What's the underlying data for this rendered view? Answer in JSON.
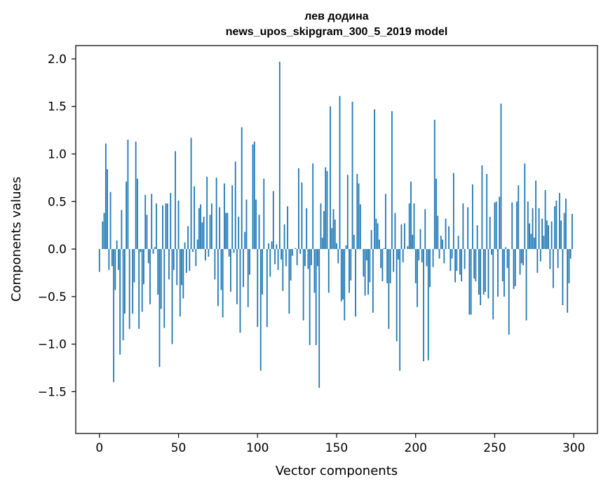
{
  "chart_data": {
    "type": "bar",
    "title": "лев додина",
    "subtitle": "news_upos_skipgram_300_5_2019 model",
    "xlabel": "Vector components",
    "ylabel": "Components values",
    "xlim": [
      -15,
      315
    ],
    "ylim": [
      -1.94,
      2.14
    ],
    "xticks": [
      0,
      50,
      100,
      150,
      200,
      250,
      300
    ],
    "yticks": [
      -1.5,
      -1.0,
      -0.5,
      0.0,
      0.5,
      1.0,
      1.5,
      2.0
    ],
    "ytick_labels": [
      "−1.5",
      "−1.0",
      "−0.5",
      "0.0",
      "0.5",
      "1.0",
      "1.5",
      "2.0"
    ],
    "bar_color": "#1f77b4",
    "grid": false,
    "x": [
      0,
      1,
      2,
      3,
      4,
      5,
      6,
      7,
      8,
      9,
      10,
      11,
      12,
      13,
      14,
      15,
      16,
      17,
      18,
      19,
      20,
      21,
      22,
      23,
      24,
      25,
      26,
      27,
      28,
      29,
      30,
      31,
      32,
      33,
      34,
      35,
      36,
      37,
      38,
      39,
      40,
      41,
      42,
      43,
      44,
      45,
      46,
      47,
      48,
      49,
      50,
      51,
      52,
      53,
      54,
      55,
      56,
      57,
      58,
      59,
      60,
      61,
      62,
      63,
      64,
      65,
      66,
      67,
      68,
      69,
      70,
      71,
      72,
      73,
      74,
      75,
      76,
      77,
      78,
      79,
      80,
      81,
      82,
      83,
      84,
      85,
      86,
      87,
      88,
      89,
      90,
      91,
      92,
      93,
      94,
      95,
      96,
      97,
      98,
      99,
      100,
      101,
      102,
      103,
      104,
      105,
      106,
      107,
      108,
      109,
      110,
      111,
      112,
      113,
      114,
      115,
      116,
      117,
      118,
      119,
      120,
      121,
      122,
      123,
      124,
      125,
      126,
      127,
      128,
      129,
      130,
      131,
      132,
      133,
      134,
      135,
      136,
      137,
      138,
      139,
      140,
      141,
      142,
      143,
      144,
      145,
      146,
      147,
      148,
      149,
      150,
      151,
      152,
      153,
      154,
      155,
      156,
      157,
      158,
      159,
      160,
      161,
      162,
      163,
      164,
      165,
      166,
      167,
      168,
      169,
      170,
      171,
      172,
      173,
      174,
      175,
      176,
      177,
      178,
      179,
      180,
      181,
      182,
      183,
      184,
      185,
      186,
      187,
      188,
      189,
      190,
      191,
      192,
      193,
      194,
      195,
      196,
      197,
      198,
      199,
      200,
      201,
      202,
      203,
      204,
      205,
      206,
      207,
      208,
      209,
      210,
      211,
      212,
      213,
      214,
      215,
      216,
      217,
      218,
      219,
      220,
      221,
      222,
      223,
      224,
      225,
      226,
      227,
      228,
      229,
      230,
      231,
      232,
      233,
      234,
      235,
      236,
      237,
      238,
      239,
      240,
      241,
      242,
      243,
      244,
      245,
      246,
      247,
      248,
      249,
      250,
      251,
      252,
      253,
      254,
      255,
      256,
      257,
      258,
      259,
      260,
      261,
      262,
      263,
      264,
      265,
      266,
      267,
      268,
      269,
      270,
      271,
      272,
      273,
      274,
      275,
      276,
      277,
      278,
      279,
      280,
      281,
      282,
      283,
      284,
      285,
      286,
      287,
      288,
      289,
      290,
      291,
      292,
      293,
      294,
      295,
      296,
      297,
      298,
      299
    ],
    "values": [
      -0.24,
      0.0,
      0.29,
      0.38,
      1.11,
      0.84,
      -0.22,
      0.6,
      -0.18,
      -1.4,
      -0.43,
      0.09,
      -0.22,
      -1.11,
      0.41,
      -0.96,
      -0.68,
      0.71,
      1.15,
      -0.84,
      0.0,
      -0.68,
      -0.35,
      1.13,
      0.74,
      -0.84,
      -0.03,
      -0.66,
      -0.37,
      0.57,
      0.36,
      -0.15,
      -0.58,
      0.58,
      -0.05,
      0.02,
      0.48,
      -0.48,
      -1.24,
      -0.63,
      0.46,
      -0.83,
      0.48,
      0.48,
      -0.32,
      0.59,
      -1.0,
      -0.22,
      1.03,
      -0.38,
      0.51,
      -0.71,
      -0.38,
      -0.52,
      0.07,
      -0.25,
      0.24,
      -0.23,
      1.17,
      -0.03,
      0.66,
      -0.18,
      0.1,
      0.43,
      0.47,
      0.28,
      0.34,
      -0.12,
      0.76,
      -0.08,
      0.36,
      0.48,
      0.0,
      -0.32,
      0.75,
      -0.6,
      0.44,
      -0.43,
      -0.72,
      0.69,
      0.38,
      0.38,
      -0.08,
      -0.45,
      0.67,
      -0.04,
      0.92,
      -0.58,
      0.34,
      -0.88,
      1.28,
      -0.4,
      0.18,
      0.52,
      -0.61,
      -0.27,
      0.0,
      1.1,
      1.13,
      0.52,
      -0.82,
      0.36,
      -1.28,
      -0.48,
      0.74,
      0.0,
      -0.82,
      0.06,
      -0.29,
      0.08,
      0.61,
      -0.16,
      0.05,
      -0.22,
      1.97,
      -0.11,
      -0.44,
      0.26,
      -0.18,
      0.45,
      -0.68,
      -0.33,
      -0.07,
      0.0,
      0.01,
      -0.17,
      0.85,
      -0.05,
      0.7,
      -0.75,
      -0.18,
      0.43,
      -0.21,
      -1.01,
      -0.17,
      0.9,
      -0.46,
      -1.01,
      -0.18,
      -1.46,
      0.48,
      0.12,
      0.4,
      0.86,
      0.82,
      -0.46,
      1.5,
      0.22,
      0.42,
      0.31,
      0.06,
      -0.15,
      1.61,
      -0.55,
      -0.53,
      -0.75,
      0.04,
      0.78,
      -0.46,
      -0.33,
      1.55,
      0.15,
      -0.71,
      0.79,
      0.69,
      0.47,
      0.0,
      -0.29,
      -0.49,
      -0.12,
      -0.48,
      -0.35,
      0.2,
      -0.67,
      1.47,
      0.32,
      0.27,
      0.1,
      -0.2,
      -0.34,
      0.01,
      0.58,
      -0.36,
      -0.84,
      -0.36,
      1.45,
      -0.24,
      0.38,
      -0.97,
      -0.11,
      -1.28,
      0.26,
      -0.14,
      0.27,
      0.0,
      0.03,
      0.48,
      0.71,
      0.15,
      0.48,
      -0.36,
      -0.61,
      -0.12,
      0.21,
      -0.14,
      -1.18,
      0.42,
      -0.18,
      -1.17,
      -0.4,
      0.0,
      -0.19,
      1.36,
      0.74,
      0.35,
      -0.1,
      0.14,
      0.1,
      -0.15,
      0.32,
      0.0,
      0.24,
      -0.23,
      -0.1,
      0.8,
      -0.35,
      -0.23,
      0.14,
      -0.27,
      -0.34,
      0.48,
      -0.21,
      0.0,
      0.44,
      -0.69,
      -0.69,
      0.68,
      -0.31,
      -0.34,
      0.25,
      -0.48,
      -0.59,
      0.88,
      -0.48,
      -0.45,
      0.79,
      -0.52,
      0.34,
      -0.06,
      -0.74,
      0.49,
      0.5,
      -0.5,
      0.55,
      1.53,
      -0.34,
      -0.5,
      0.02,
      -0.2,
      -0.9,
      0.0,
      0.49,
      -0.42,
      -0.39,
      0.5,
      0.67,
      -0.27,
      -0.15,
      -0.17,
      0.9,
      -0.75,
      0.5,
      0.27,
      0.16,
      0.43,
      0.12,
      0.72,
      -0.25,
      0.43,
      -0.13,
      0.32,
      0.14,
      0.62,
      0.3,
      0.25,
      -0.21,
      0.29,
      -0.41,
      0.45,
      0.51,
      -0.2,
      0.59,
      0.3,
      -0.59,
      0.38,
      0.53,
      -0.67,
      -0.36,
      -0.1,
      0.37
    ]
  }
}
